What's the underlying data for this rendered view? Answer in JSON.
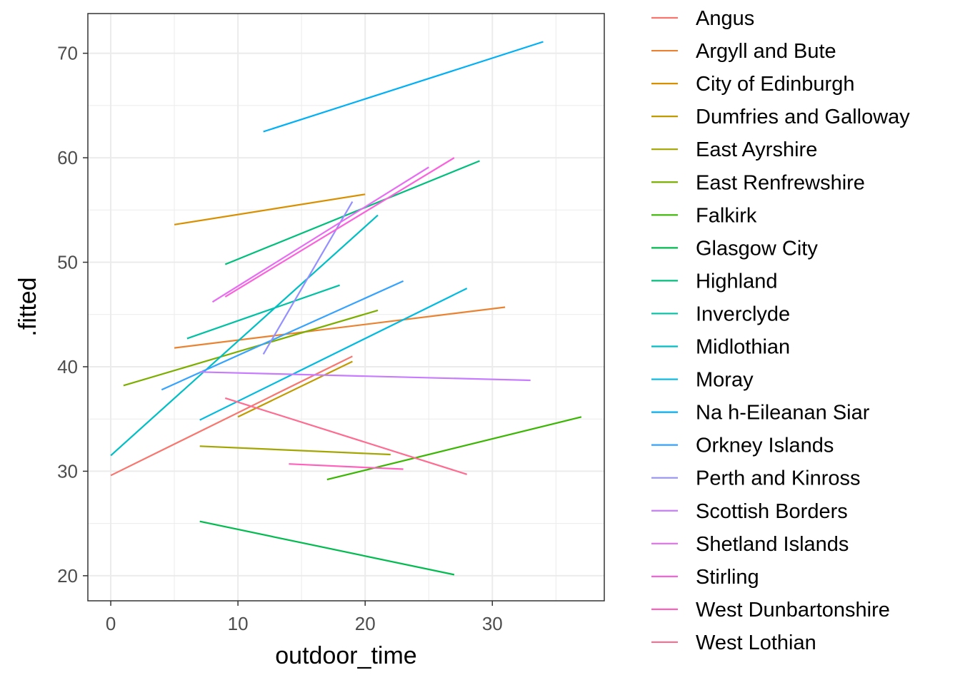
{
  "chart_data": {
    "type": "line",
    "title": "",
    "xlabel": "outdoor_time",
    "ylabel": ".fitted",
    "xlim": [
      -1.8,
      38.8
    ],
    "ylim": [
      17.6,
      73.8
    ],
    "x_ticks": [
      0,
      10,
      20,
      30
    ],
    "y_ticks": [
      20,
      30,
      40,
      50,
      60,
      70
    ],
    "grid": true,
    "legend_position": "right",
    "series": [
      {
        "name": "Angus",
        "color": "#F8766D",
        "x": [
          0,
          19
        ],
        "y": [
          29.6,
          41.0
        ]
      },
      {
        "name": "Argyll and Bute",
        "color": "#EA8331",
        "x": [
          5,
          31
        ],
        "y": [
          41.8,
          45.7
        ]
      },
      {
        "name": "City of Edinburgh",
        "color": "#D89000",
        "x": [
          5,
          20
        ],
        "y": [
          53.6,
          56.5
        ]
      },
      {
        "name": "Dumfries and Galloway",
        "color": "#C09B00",
        "x": [
          10,
          19
        ],
        "y": [
          35.2,
          40.5
        ]
      },
      {
        "name": "East Ayrshire",
        "color": "#A3A500",
        "x": [
          7,
          22
        ],
        "y": [
          32.4,
          31.6
        ]
      },
      {
        "name": "East Renfrewshire",
        "color": "#7CAE00",
        "x": [
          1,
          21
        ],
        "y": [
          38.2,
          45.4
        ]
      },
      {
        "name": "Falkirk",
        "color": "#39B600",
        "x": [
          17,
          37
        ],
        "y": [
          29.2,
          35.2
        ]
      },
      {
        "name": "Glasgow City",
        "color": "#00BB4E",
        "x": [
          7,
          27
        ],
        "y": [
          25.2,
          20.1
        ]
      },
      {
        "name": "Highland",
        "color": "#00BF7D",
        "x": [
          9,
          29
        ],
        "y": [
          49.8,
          59.7
        ]
      },
      {
        "name": "Inverclyde",
        "color": "#00C1A3",
        "x": [
          6,
          18
        ],
        "y": [
          42.7,
          47.8
        ]
      },
      {
        "name": "Midlothian",
        "color": "#00BFC4",
        "x": [
          0,
          21
        ],
        "y": [
          31.5,
          54.5
        ]
      },
      {
        "name": "Moray",
        "color": "#00BAE0",
        "x": [
          7,
          28
        ],
        "y": [
          34.9,
          47.5
        ]
      },
      {
        "name": "Na h-Eileanan Siar",
        "color": "#00B0F6",
        "x": [
          12,
          34
        ],
        "y": [
          62.5,
          71.1
        ]
      },
      {
        "name": "Orkney Islands",
        "color": "#35A2FF",
        "x": [
          4,
          23
        ],
        "y": [
          37.8,
          48.2
        ]
      },
      {
        "name": "Perth and Kinross",
        "color": "#9590FF",
        "x": [
          12,
          19
        ],
        "y": [
          41.2,
          55.8
        ]
      },
      {
        "name": "Scottish Borders",
        "color": "#C77CFF",
        "x": [
          7,
          33
        ],
        "y": [
          39.5,
          38.7
        ]
      },
      {
        "name": "Shetland Islands",
        "color": "#E76BF3",
        "x": [
          8,
          25
        ],
        "y": [
          46.2,
          59.1
        ]
      },
      {
        "name": "Stirling",
        "color": "#FA62DB",
        "x": [
          9,
          27
        ],
        "y": [
          46.7,
          60.0
        ]
      },
      {
        "name": "West Dunbartonshire",
        "color": "#FF62BC",
        "x": [
          14,
          23
        ],
        "y": [
          30.7,
          30.2
        ]
      },
      {
        "name": "West Lothian",
        "color": "#FF6C91",
        "x": [
          9,
          28
        ],
        "y": [
          37.0,
          29.7
        ]
      }
    ]
  }
}
